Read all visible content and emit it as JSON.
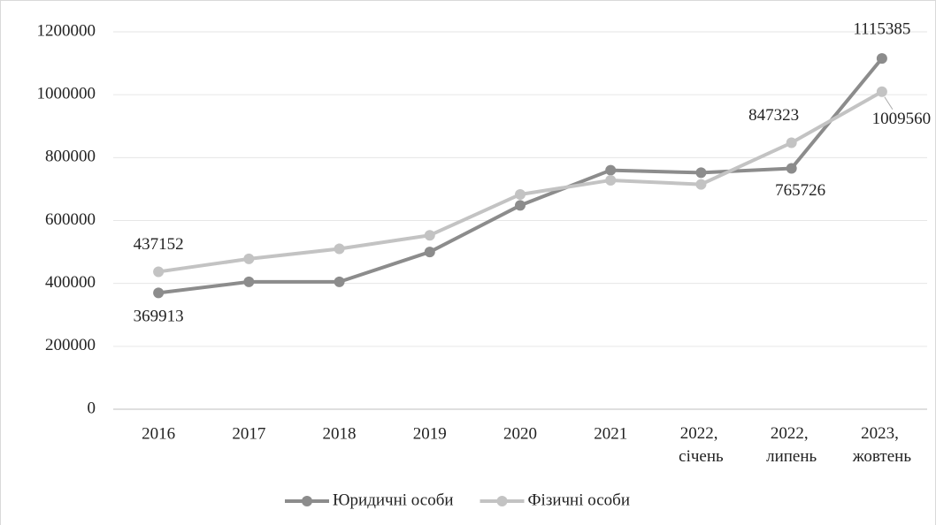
{
  "chart_data": {
    "type": "line",
    "categories": [
      "2016",
      "2017",
      "2018",
      "2019",
      "2020",
      "2021",
      "2022, січень",
      "2022, липень",
      "2023, жовтень"
    ],
    "series": [
      {
        "name": "Юридичні особи",
        "color": "#8c8c8c",
        "values": [
          369913,
          405000,
          405000,
          500000,
          648000,
          760000,
          752000,
          765726,
          1115385
        ],
        "data_labels": [
          0,
          7,
          8
        ]
      },
      {
        "name": "Фізичні особи",
        "color": "#c3c3c3",
        "values": [
          437152,
          478000,
          510000,
          553000,
          683000,
          728000,
          715000,
          847323,
          1009560
        ],
        "data_labels": [
          0,
          7,
          8
        ]
      }
    ],
    "ylim": [
      0,
      1200000
    ],
    "yticks": [
      0,
      200000,
      400000,
      600000,
      800000,
      1000000,
      1200000
    ],
    "grid": true,
    "legend": "bottom"
  }
}
